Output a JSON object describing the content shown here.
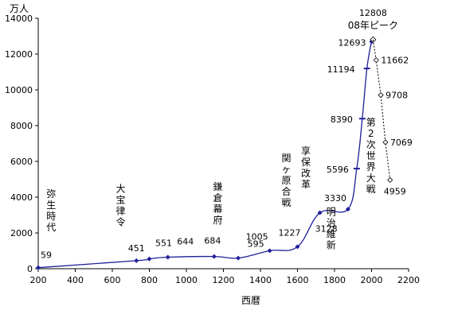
{
  "chart_data": {
    "type": "line",
    "title": "",
    "xlabel": "西暦",
    "ylabel": "万人",
    "xlim": [
      200,
      2200
    ],
    "ylim": [
      0,
      14000
    ],
    "x_ticks": [
      200,
      400,
      600,
      800,
      1000,
      1200,
      1400,
      1600,
      1800,
      2000,
      2200
    ],
    "y_ticks": [
      0,
      2000,
      4000,
      6000,
      8000,
      10000,
      12000,
      14000
    ],
    "grid": false,
    "legend": "none",
    "line_color": "#1f1f99",
    "series": [
      {
        "points": [
          {
            "x": 200,
            "y": 59,
            "label": "59"
          },
          {
            "x": 730,
            "y": 451,
            "label": "451"
          },
          {
            "x": 800,
            "y": 551,
            "label": "551"
          },
          {
            "x": 900,
            "y": 644,
            "label": "644"
          },
          {
            "x": 1150,
            "y": 684,
            "label": "684"
          },
          {
            "x": 1280,
            "y": 595,
            "label": "595"
          },
          {
            "x": 1450,
            "y": 1005,
            "label": "1005"
          },
          {
            "x": 1600,
            "y": 1227,
            "label": "1227"
          },
          {
            "x": 1721,
            "y": 3128,
            "label": "3128"
          },
          {
            "x": 1873,
            "y": 3330,
            "label": "3330"
          },
          {
            "x": 1920,
            "y": 5596,
            "label": "5596"
          },
          {
            "x": 1950,
            "y": 8390,
            "label": "8390"
          },
          {
            "x": 1975,
            "y": 11194,
            "label": "11194"
          },
          {
            "x": 2000,
            "y": 12693,
            "label": "12693"
          },
          {
            "x": 2008,
            "y": 12808,
            "label": "12808"
          }
        ]
      },
      {
        "style": "dashed",
        "points": [
          {
            "x": 2008,
            "y": 12808,
            "label": ""
          },
          {
            "x": 2025,
            "y": 11662,
            "label": "11662"
          },
          {
            "x": 2050,
            "y": 9708,
            "label": "9708"
          },
          {
            "x": 2075,
            "y": 7069,
            "label": "7069"
          },
          {
            "x": 2100,
            "y": 4959,
            "label": "4959"
          }
        ]
      }
    ],
    "annotations": [
      {
        "text": "弥生時代",
        "x": 270,
        "y": 4000,
        "vertical": true
      },
      {
        "text": "大宝律令",
        "x": 645,
        "y": 4300,
        "vertical": true
      },
      {
        "text": "鎌倉幕府",
        "x": 1170,
        "y": 4400,
        "vertical": true
      },
      {
        "text": "関ヶ原合戦",
        "x": 1540,
        "y": 6000,
        "vertical": true
      },
      {
        "text": "享保改革",
        "x": 1645,
        "y": 6400,
        "vertical": true
      },
      {
        "text": "明治維新",
        "x": 1782,
        "y": 3000,
        "vertical": true
      },
      {
        "text": "第2次世界大戦",
        "x": 1997,
        "y": 8000,
        "vertical": true
      },
      {
        "text": "08年ピーク",
        "x": 2008,
        "y": 13600,
        "vertical": false
      }
    ]
  }
}
